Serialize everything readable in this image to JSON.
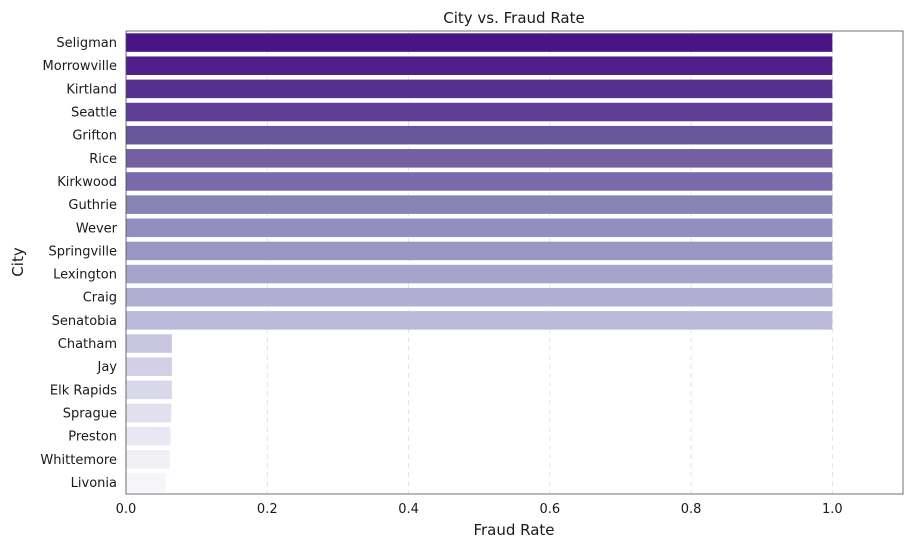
{
  "chart_data": {
    "type": "bar",
    "orientation": "horizontal",
    "title": "City vs. Fraud Rate",
    "xlabel": "Fraud Rate",
    "ylabel": "City",
    "xlim": [
      0,
      1.1
    ],
    "xticks": [
      0.0,
      0.2,
      0.4,
      0.6,
      0.8,
      1.0
    ],
    "xtick_labels": [
      "0.0",
      "0.2",
      "0.4",
      "0.6",
      "0.8",
      "1.0"
    ],
    "grid": "x-dashed",
    "categories": [
      "Seligman",
      "Morrowville",
      "Kirtland",
      "Seattle",
      "Grifton",
      "Rice",
      "Kirkwood",
      "Guthrie",
      "Wever",
      "Springville",
      "Lexington",
      "Craig",
      "Senatobia",
      "Chatham",
      "Jay",
      "Elk Rapids",
      "Sprague",
      "Preston",
      "Whittemore",
      "Livonia"
    ],
    "values": [
      1.0,
      1.0,
      1.0,
      1.0,
      1.0,
      1.0,
      1.0,
      1.0,
      1.0,
      1.0,
      1.0,
      1.0,
      1.0,
      0.065,
      0.065,
      0.065,
      0.064,
      0.063,
      0.062,
      0.056
    ],
    "colors": [
      "#4a1486",
      "#4f1f8a",
      "#56308e",
      "#5e3e95",
      "#69569a",
      "#735fa2",
      "#7a6aab",
      "#8784b4",
      "#928fbe",
      "#9a97c5",
      "#a6a4ca",
      "#b0afd3",
      "#bbbadb",
      "#c7c5e0",
      "#d1d0e6",
      "#d9d8ea",
      "#e1e0ee",
      "#e9e8f2",
      "#f0eff6",
      "#f6f5fa"
    ]
  }
}
